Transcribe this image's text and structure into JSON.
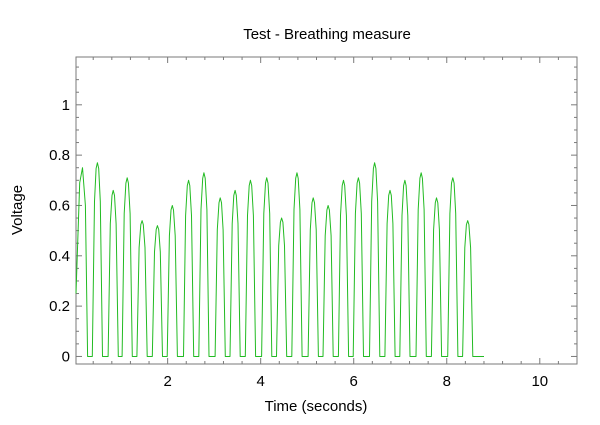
{
  "chart_data": {
    "type": "line",
    "title": "Test - Breathing measure",
    "xlabel": "Time (seconds)",
    "ylabel": "Voltage",
    "xlim": [
      0.03,
      10.8
    ],
    "ylim": [
      -0.03,
      1.19
    ],
    "xticks": [
      2,
      4,
      6,
      8,
      10
    ],
    "yticks": [
      0,
      0.2,
      0.4,
      0.6,
      0.8,
      1
    ],
    "xtick_labels": [
      "2",
      "4",
      "6",
      "8",
      "10"
    ],
    "ytick_labels": [
      "0",
      "0.2",
      "0.4",
      "0.6",
      "0.8",
      "1"
    ],
    "grid": false,
    "series": [
      {
        "color": "#22bb22",
        "peaks": [
          {
            "t": 0.17,
            "v": 0.75
          },
          {
            "t": 0.49,
            "v": 0.77
          },
          {
            "t": 0.83,
            "v": 0.66
          },
          {
            "t": 1.13,
            "v": 0.71
          },
          {
            "t": 1.45,
            "v": 0.54
          },
          {
            "t": 1.78,
            "v": 0.52
          },
          {
            "t": 2.1,
            "v": 0.6
          },
          {
            "t": 2.45,
            "v": 0.7
          },
          {
            "t": 2.78,
            "v": 0.73
          },
          {
            "t": 3.13,
            "v": 0.63
          },
          {
            "t": 3.45,
            "v": 0.66
          },
          {
            "t": 3.78,
            "v": 0.7
          },
          {
            "t": 4.13,
            "v": 0.71
          },
          {
            "t": 4.45,
            "v": 0.55
          },
          {
            "t": 4.78,
            "v": 0.73
          },
          {
            "t": 5.13,
            "v": 0.63
          },
          {
            "t": 5.45,
            "v": 0.6
          },
          {
            "t": 5.78,
            "v": 0.7
          },
          {
            "t": 6.1,
            "v": 0.71
          },
          {
            "t": 6.45,
            "v": 0.77
          },
          {
            "t": 6.78,
            "v": 0.66
          },
          {
            "t": 7.1,
            "v": 0.7
          },
          {
            "t": 7.45,
            "v": 0.73
          },
          {
            "t": 7.78,
            "v": 0.63
          },
          {
            "t": 8.13,
            "v": 0.71
          },
          {
            "t": 8.45,
            "v": 0.54
          }
        ],
        "start": {
          "t": 0.03,
          "v": 0.25
        },
        "end_t": 8.8
      }
    ]
  }
}
